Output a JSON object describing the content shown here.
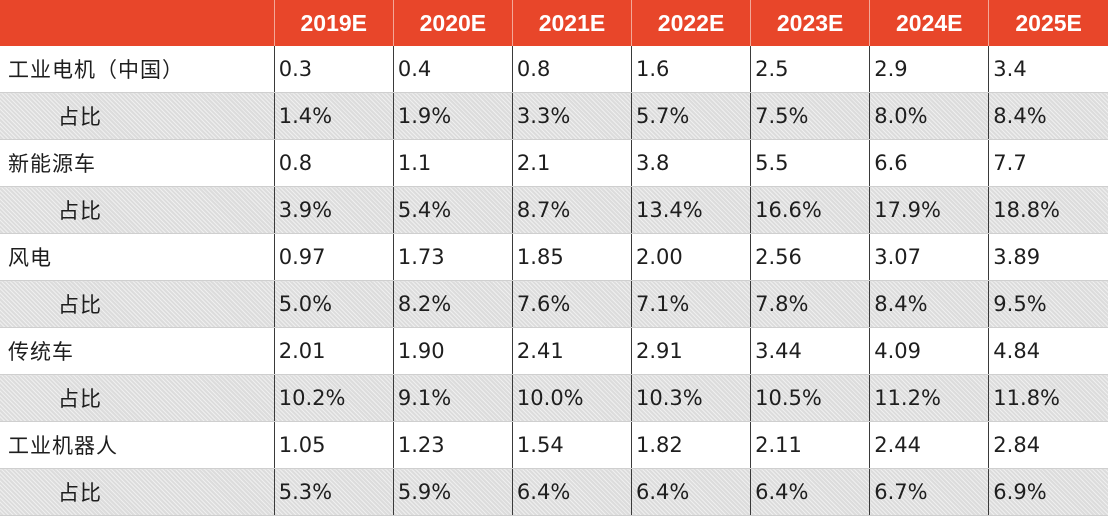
{
  "table": {
    "headers": [
      "",
      "2019E",
      "2020E",
      "2021E",
      "2022E",
      "2023E",
      "2024E",
      "2025E"
    ],
    "rows": [
      {
        "label": "工业电机（中国）",
        "type": "value",
        "values": [
          "0.3",
          "0.4",
          "0.8",
          "1.6",
          "2.5",
          "2.9",
          "3.4"
        ]
      },
      {
        "label": "占比",
        "type": "share",
        "values": [
          "1.4%",
          "1.9%",
          "3.3%",
          "5.7%",
          "7.5%",
          "8.0%",
          "8.4%"
        ]
      },
      {
        "label": "新能源车",
        "type": "value",
        "values": [
          "0.8",
          "1.1",
          "2.1",
          "3.8",
          "5.5",
          "6.6",
          "7.7"
        ]
      },
      {
        "label": "占比",
        "type": "share",
        "values": [
          "3.9%",
          "5.4%",
          "8.7%",
          "13.4%",
          "16.6%",
          "17.9%",
          "18.8%"
        ]
      },
      {
        "label": "风电",
        "type": "value",
        "values": [
          "0.97",
          "1.73",
          "1.85",
          "2.00",
          "2.56",
          "3.07",
          "3.89"
        ]
      },
      {
        "label": "占比",
        "type": "share",
        "values": [
          "5.0%",
          "8.2%",
          "7.6%",
          "7.1%",
          "7.8%",
          "8.4%",
          "9.5%"
        ]
      },
      {
        "label": "传统车",
        "type": "value",
        "values": [
          "2.01",
          "1.90",
          "2.41",
          "2.91",
          "3.44",
          "4.09",
          "4.84"
        ]
      },
      {
        "label": "占比",
        "type": "share",
        "values": [
          "10.2%",
          "9.1%",
          "10.0%",
          "10.3%",
          "10.5%",
          "11.2%",
          "11.8%"
        ]
      },
      {
        "label": "工业机器人",
        "type": "value",
        "values": [
          "1.05",
          "1.23",
          "1.54",
          "1.82",
          "2.11",
          "2.44",
          "2.84"
        ]
      },
      {
        "label": "占比",
        "type": "share",
        "values": [
          "5.3%",
          "5.9%",
          "6.4%",
          "6.4%",
          "6.4%",
          "6.7%",
          "6.9%"
        ]
      }
    ]
  },
  "colors": {
    "header_bg": "#e8462a",
    "header_text": "#ffffff",
    "share_row_bg": "#dcdcdc"
  }
}
